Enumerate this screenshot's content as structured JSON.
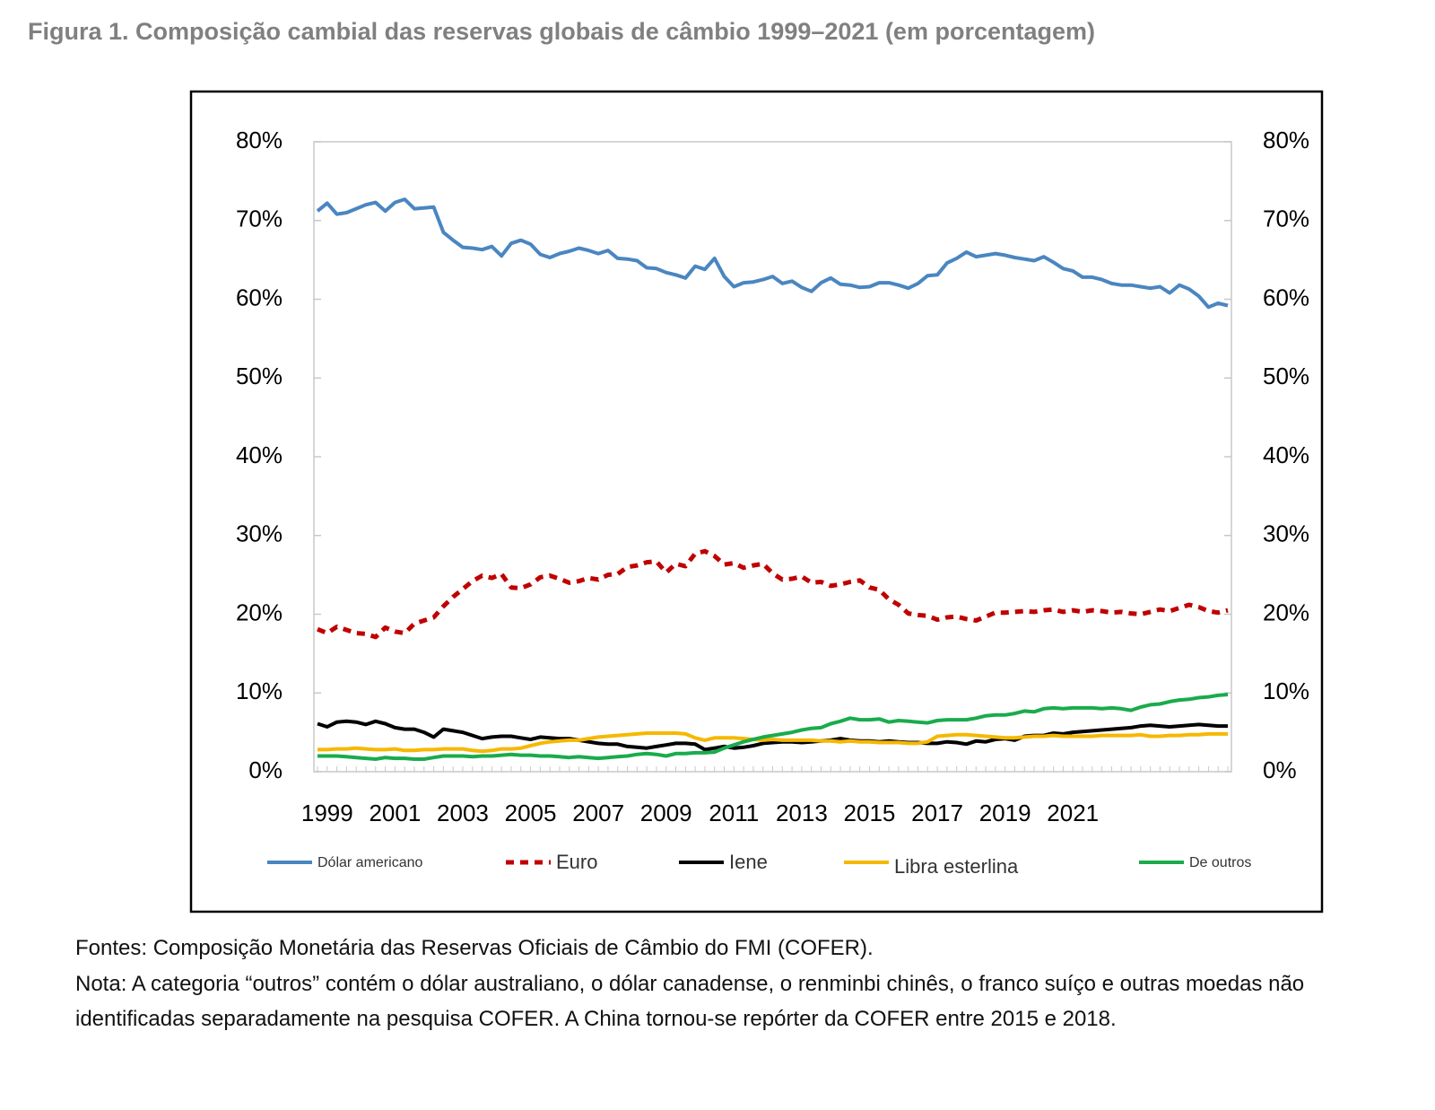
{
  "chart_data": {
    "type": "line",
    "title": "Figura 1. Composição cambial das reservas globais de câmbio 1999–2021 (em porcentagem)",
    "categories": [
      null,
      "1999",
      null,
      null,
      null,
      null,
      null,
      null,
      "2001",
      null,
      null,
      null,
      null,
      null,
      null,
      "2003",
      null,
      null,
      null,
      null,
      null,
      null,
      "2005",
      null,
      null,
      null,
      null,
      null,
      null,
      "2007",
      null,
      null,
      null,
      null,
      null,
      null,
      "2009",
      null,
      null,
      null,
      null,
      null,
      null,
      "2011",
      null,
      null,
      null,
      null,
      null,
      null,
      "2013",
      null,
      null,
      null,
      null,
      null,
      null,
      "2015",
      null,
      null,
      null,
      null,
      null,
      null,
      "2017",
      null,
      null,
      null,
      null,
      null,
      null,
      "2019",
      null,
      null,
      null,
      null,
      null,
      null,
      "2021",
      null,
      null,
      null,
      null,
      null,
      null,
      null,
      null,
      null,
      null,
      null,
      null,
      null,
      null,
      null,
      null
    ],
    "series": [
      {
        "name": "Dólar americano",
        "color": "#4a86c0",
        "dashed": false,
        "values": [
          71.2,
          72.2,
          70.8,
          71.0,
          71.5,
          72.0,
          72.3,
          71.2,
          72.3,
          72.7,
          71.5,
          71.6,
          71.7,
          68.5,
          67.5,
          66.6,
          66.5,
          66.3,
          66.7,
          65.5,
          67.1,
          67.5,
          67.0,
          65.7,
          65.3,
          65.8,
          66.1,
          66.5,
          66.2,
          65.8,
          66.2,
          65.2,
          65.1,
          64.9,
          64.0,
          63.9,
          63.4,
          63.1,
          62.7,
          64.2,
          63.8,
          65.2,
          62.9,
          61.6,
          62.1,
          62.2,
          62.5,
          62.9,
          62.0,
          62.3,
          61.5,
          61.0,
          62.1,
          62.7,
          61.9,
          61.8,
          61.5,
          61.6,
          62.1,
          62.1,
          61.8,
          61.4,
          62.0,
          63.0,
          63.1,
          64.6,
          65.2,
          66.0,
          65.4,
          65.6,
          65.8,
          65.6,
          65.3,
          65.1,
          64.9,
          65.4,
          64.7,
          63.9,
          63.6,
          62.8,
          62.8,
          62.5,
          62.0,
          61.8,
          61.8,
          61.6,
          61.4,
          61.6,
          60.8,
          61.8,
          61.3,
          60.4,
          59.0,
          59.5,
          59.2
        ]
      },
      {
        "name": "Euro",
        "color": "#c00000",
        "dashed": true,
        "values": [
          18.1,
          17.6,
          18.4,
          18.0,
          17.6,
          17.5,
          17.1,
          18.3,
          17.8,
          17.6,
          18.8,
          19.2,
          19.6,
          21.0,
          22.2,
          23.2,
          24.2,
          24.9,
          24.6,
          25.1,
          23.4,
          23.3,
          23.8,
          24.7,
          24.9,
          24.5,
          24.0,
          24.2,
          24.6,
          24.4,
          25.0,
          25.1,
          26.0,
          26.2,
          26.6,
          26.7,
          25.3,
          26.4,
          26.1,
          27.7,
          28.0,
          27.4,
          26.3,
          26.5,
          25.9,
          26.2,
          26.4,
          25.2,
          24.4,
          24.5,
          24.8,
          24.0,
          24.1,
          23.6,
          23.8,
          24.1,
          24.3,
          23.4,
          23.1,
          21.9,
          21.2,
          20.1,
          19.9,
          19.8,
          19.3,
          19.6,
          19.7,
          19.4,
          19.2,
          19.7,
          20.2,
          20.2,
          20.3,
          20.4,
          20.3,
          20.5,
          20.6,
          20.3,
          20.5,
          20.3,
          20.5,
          20.4,
          20.2,
          20.3,
          20.1,
          20.0,
          20.3,
          20.6,
          20.4,
          20.8,
          21.2,
          20.9,
          20.4,
          20.2,
          20.5
        ]
      },
      {
        "name": "Iene",
        "color": "#000000",
        "dashed": false,
        "values": [
          6.1,
          5.7,
          6.3,
          6.4,
          6.3,
          6.0,
          6.4,
          6.1,
          5.6,
          5.4,
          5.4,
          5.0,
          4.4,
          5.4,
          5.2,
          5.0,
          4.6,
          4.2,
          4.4,
          4.5,
          4.5,
          4.3,
          4.1,
          4.4,
          4.3,
          4.2,
          4.2,
          4.0,
          3.8,
          3.6,
          3.5,
          3.5,
          3.2,
          3.1,
          3.0,
          3.2,
          3.4,
          3.6,
          3.6,
          3.5,
          2.8,
          3.0,
          3.2,
          3.0,
          3.1,
          3.3,
          3.6,
          3.7,
          3.8,
          3.8,
          3.7,
          3.8,
          3.9,
          4.0,
          4.2,
          4.0,
          3.9,
          3.9,
          3.8,
          3.9,
          3.8,
          3.7,
          3.7,
          3.6,
          3.6,
          3.8,
          3.7,
          3.5,
          3.9,
          3.8,
          4.1,
          4.2,
          4.0,
          4.5,
          4.6,
          4.6,
          4.9,
          4.8,
          5.0,
          5.1,
          5.2,
          5.3,
          5.4,
          5.5,
          5.6,
          5.8,
          5.9,
          5.8,
          5.7,
          5.8,
          5.9,
          6.0,
          5.9,
          5.8,
          5.8
        ]
      },
      {
        "name": "Libra esterlina",
        "color": "#f5b800",
        "dashed": false,
        "values": [
          2.8,
          2.8,
          2.9,
          2.9,
          3.0,
          2.9,
          2.8,
          2.8,
          2.9,
          2.7,
          2.7,
          2.8,
          2.8,
          2.9,
          2.9,
          2.9,
          2.7,
          2.6,
          2.7,
          2.9,
          2.9,
          3.0,
          3.3,
          3.6,
          3.8,
          3.9,
          4.0,
          4.0,
          4.2,
          4.4,
          4.5,
          4.6,
          4.7,
          4.8,
          4.9,
          4.9,
          4.9,
          4.9,
          4.8,
          4.3,
          4.0,
          4.3,
          4.3,
          4.3,
          4.2,
          4.1,
          4.0,
          4.1,
          4.0,
          4.0,
          4.0,
          4.0,
          3.9,
          3.9,
          3.8,
          3.9,
          3.8,
          3.8,
          3.7,
          3.7,
          3.7,
          3.6,
          3.6,
          3.8,
          4.5,
          4.6,
          4.7,
          4.7,
          4.6,
          4.5,
          4.4,
          4.3,
          4.3,
          4.4,
          4.5,
          4.5,
          4.6,
          4.5,
          4.5,
          4.5,
          4.5,
          4.6,
          4.6,
          4.6,
          4.6,
          4.7,
          4.5,
          4.5,
          4.6,
          4.6,
          4.7,
          4.7,
          4.8,
          4.8,
          4.8
        ]
      },
      {
        "name": "De outros",
        "color": "#1aab4c",
        "dashed": false,
        "values": [
          2.0,
          2.0,
          2.0,
          1.9,
          1.8,
          1.7,
          1.6,
          1.8,
          1.7,
          1.7,
          1.6,
          1.6,
          1.8,
          2.0,
          2.0,
          2.0,
          1.9,
          2.0,
          2.0,
          2.1,
          2.2,
          2.1,
          2.1,
          2.0,
          2.0,
          1.9,
          1.8,
          1.9,
          1.8,
          1.7,
          1.8,
          1.9,
          2.0,
          2.2,
          2.3,
          2.2,
          2.0,
          2.3,
          2.3,
          2.4,
          2.4,
          2.5,
          3.0,
          3.4,
          3.8,
          4.1,
          4.4,
          4.6,
          4.8,
          5.0,
          5.3,
          5.5,
          5.6,
          6.1,
          6.4,
          6.8,
          6.6,
          6.6,
          6.7,
          6.3,
          6.5,
          6.4,
          6.3,
          6.2,
          6.5,
          6.6,
          6.6,
          6.6,
          6.8,
          7.1,
          7.2,
          7.2,
          7.4,
          7.7,
          7.6,
          8.0,
          8.1,
          8.0,
          8.1,
          8.1,
          8.1,
          8.0,
          8.1,
          8.0,
          7.8,
          8.2,
          8.5,
          8.6,
          8.9,
          9.1,
          9.2,
          9.4,
          9.5,
          9.7,
          9.8
        ]
      }
    ],
    "ylim": [
      0,
      80
    ],
    "yticks": [
      {
        "value": 0,
        "label": "0%"
      },
      {
        "value": 10,
        "label": "10%"
      },
      {
        "value": 20,
        "label": "20%"
      },
      {
        "value": 30,
        "label": "30%"
      },
      {
        "value": 40,
        "label": "40%"
      },
      {
        "value": 50,
        "label": "50%"
      },
      {
        "value": 60,
        "label": "60%"
      },
      {
        "value": 70,
        "label": "70%"
      },
      {
        "value": 80,
        "label": "80%"
      }
    ],
    "y2lim": [
      0,
      80
    ],
    "y2ticks": [
      {
        "value": 0,
        "label": "0%"
      },
      {
        "value": 10,
        "label": "10%"
      },
      {
        "value": 20,
        "label": "20%"
      },
      {
        "value": 30,
        "label": "30%"
      },
      {
        "value": 40,
        "label": "40%"
      },
      {
        "value": 50,
        "label": "50%"
      },
      {
        "value": 60,
        "label": "60%"
      },
      {
        "value": 70,
        "label": "70%"
      },
      {
        "value": 80,
        "label": "80%"
      }
    ],
    "grid": false,
    "legend": "bottom",
    "source": "Fontes: Composição Monetária das Reservas Oficiais de Câmbio do FMI (COFER).",
    "note": "Nota: A categoria “outros” contém o dólar australiano, o dólar canadense, o renminbi chinês, o franco suíço e outras moedas não identificadas separadamente na pesquisa COFER. A China tornou-se repórter da COFER entre 2015 e 2018."
  }
}
